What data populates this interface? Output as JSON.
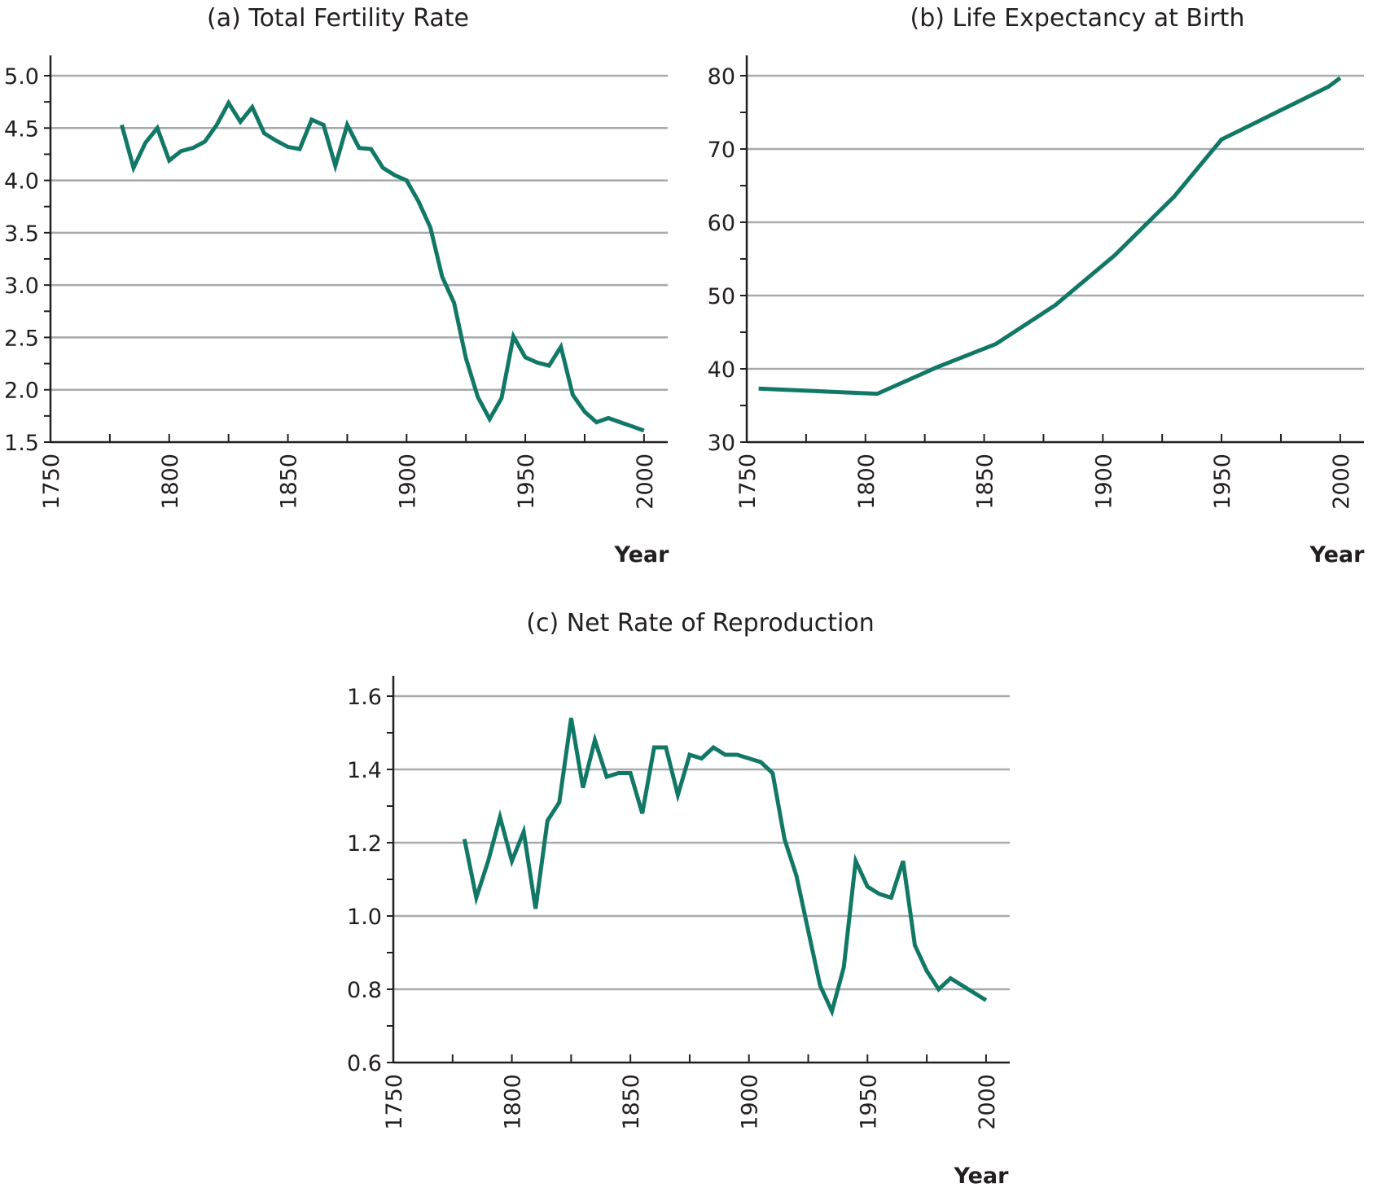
{
  "chart_data": [
    {
      "type": "line",
      "title": "(a) Total Fertility Rate",
      "xlabel": "Year",
      "ylabel": "",
      "xlim": [
        1750,
        2010
      ],
      "ylim": [
        1.5,
        5.0
      ],
      "xticks": [
        "1750",
        "1800",
        "1850",
        "1900",
        "1950",
        "2000"
      ],
      "yticks": [
        "1.5",
        "2.0",
        "2.5",
        "3.0",
        "3.5",
        "4.0",
        "4.5",
        "5.0"
      ],
      "grid": true,
      "color": "#127866",
      "series": [
        {
          "x": [
            1780,
            1785,
            1790,
            1795,
            1800,
            1805,
            1810,
            1815,
            1820,
            1825,
            1830,
            1835,
            1840,
            1845,
            1850,
            1855,
            1860,
            1865,
            1870,
            1875,
            1880,
            1885,
            1890,
            1895,
            1900,
            1905,
            1910,
            1915,
            1920,
            1925,
            1930,
            1935,
            1940,
            1945,
            1950,
            1955,
            1960,
            1965,
            1970,
            1975,
            1980,
            1985,
            1990,
            1995,
            2000
          ],
          "y": [
            4.53,
            4.12,
            4.36,
            4.5,
            4.19,
            4.28,
            4.31,
            4.37,
            4.53,
            4.74,
            4.56,
            4.7,
            4.45,
            4.38,
            4.32,
            4.3,
            4.58,
            4.53,
            4.14,
            4.53,
            4.31,
            4.3,
            4.12,
            4.05,
            4.0,
            3.8,
            3.55,
            3.08,
            2.83,
            2.3,
            1.93,
            1.72,
            1.92,
            2.51,
            2.31,
            2.26,
            2.23,
            2.41,
            1.95,
            1.79,
            1.69,
            1.73,
            1.69,
            1.65,
            1.61
          ]
        }
      ]
    },
    {
      "type": "line",
      "title": "(b) Life Expectancy at Birth",
      "xlabel": "Year",
      "ylabel": "",
      "xlim": [
        1750,
        2010
      ],
      "ylim": [
        30,
        80
      ],
      "xticks": [
        "1750",
        "1800",
        "1850",
        "1900",
        "1950",
        "2000"
      ],
      "yticks": [
        "30",
        "40",
        "50",
        "60",
        "70",
        "80"
      ],
      "grid": true,
      "color": "#127866",
      "series": [
        {
          "x": [
            1755,
            1805,
            1830,
            1855,
            1880,
            1905,
            1930,
            1950,
            1975,
            1995,
            2000
          ],
          "y": [
            37.3,
            36.6,
            40.2,
            43.4,
            48.7,
            55.5,
            63.5,
            71.3,
            75.3,
            78.5,
            79.7
          ]
        }
      ]
    },
    {
      "type": "line",
      "title": "(c) Net Rate of Reproduction",
      "xlabel": "Year",
      "ylabel": "",
      "xlim": [
        1750,
        2010
      ],
      "ylim": [
        0.6,
        1.6
      ],
      "xticks": [
        "1750",
        "1800",
        "1850",
        "1900",
        "1950",
        "2000"
      ],
      "yticks": [
        "0.6",
        "0.8",
        "1.0",
        "1.2",
        "1.4",
        "1.6"
      ],
      "grid": true,
      "color": "#127866",
      "series": [
        {
          "x": [
            1780,
            1785,
            1790,
            1795,
            1800,
            1805,
            1810,
            1815,
            1820,
            1825,
            1830,
            1835,
            1840,
            1845,
            1850,
            1855,
            1860,
            1865,
            1870,
            1875,
            1880,
            1885,
            1890,
            1895,
            1900,
            1905,
            1910,
            1915,
            1920,
            1925,
            1930,
            1935,
            1940,
            1945,
            1950,
            1955,
            1960,
            1965,
            1970,
            1975,
            1980,
            1985,
            1990,
            1995,
            2000
          ],
          "y": [
            1.21,
            1.05,
            1.15,
            1.27,
            1.15,
            1.23,
            1.02,
            1.26,
            1.31,
            1.54,
            1.35,
            1.48,
            1.38,
            1.39,
            1.39,
            1.28,
            1.46,
            1.46,
            1.33,
            1.44,
            1.43,
            1.46,
            1.44,
            1.44,
            1.43,
            1.42,
            1.39,
            1.21,
            1.11,
            0.96,
            0.81,
            0.74,
            0.86,
            1.15,
            1.08,
            1.06,
            1.05,
            1.15,
            0.92,
            0.85,
            0.8,
            0.83,
            0.81,
            0.79,
            0.77
          ]
        }
      ]
    }
  ]
}
